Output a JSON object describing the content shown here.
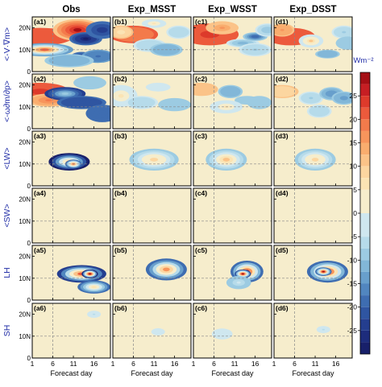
{
  "chart_data": {
    "type": "heatmap",
    "columns": [
      "Obs",
      "Exp_MSST",
      "Exp_WSST",
      "Exp_DSST"
    ],
    "rows": [
      "<-V·∇m>",
      "<-ω∂m/∂p>",
      "<LW>",
      "<SW>",
      "LH",
      "SH"
    ],
    "panel_labels": [
      [
        "(a1)",
        "(b1)",
        "(c1)",
        "(d1)"
      ],
      [
        "(a2)",
        "(b2)",
        "(c2)",
        "(d2)"
      ],
      [
        "(a3)",
        "(b3)",
        "(c3)",
        "(d3)"
      ],
      [
        "(a4)",
        "(b4)",
        "(c4)",
        "(d4)"
      ],
      [
        "(a5)",
        "(b5)",
        "(c5)",
        "(d5)"
      ],
      [
        "(a6)",
        "(b6)",
        "(c6)",
        "(d6)"
      ]
    ],
    "xlabel": "Forecast day",
    "x_ticks": [
      "1",
      "6",
      "11",
      "16"
    ],
    "xlim": [
      1,
      20
    ],
    "y_ticks": [
      "0",
      "10N",
      "20N"
    ],
    "ylim": [
      0,
      25
    ],
    "colorbar": {
      "unit": "Wm⁻²",
      "ticks": [
        25,
        20,
        15,
        10,
        5,
        0,
        -5,
        -10,
        -15,
        -20,
        -25
      ],
      "range": [
        -30,
        30
      ],
      "levels": [
        {
          "from": 27.5,
          "to": 30,
          "color": "#a50f15"
        },
        {
          "from": 25,
          "to": 27.5,
          "color": "#c61e23"
        },
        {
          "from": 22.5,
          "to": 25,
          "color": "#dd3a2b"
        },
        {
          "from": 20,
          "to": 22.5,
          "color": "#ec5a3c"
        },
        {
          "from": 17.5,
          "to": 20,
          "color": "#f37a4b"
        },
        {
          "from": 15,
          "to": 17.5,
          "color": "#f7955c"
        },
        {
          "from": 12.5,
          "to": 15,
          "color": "#f9ad6e"
        },
        {
          "from": 10,
          "to": 12.5,
          "color": "#fbc388"
        },
        {
          "from": 7.5,
          "to": 10,
          "color": "#fcd6a0"
        },
        {
          "from": 5,
          "to": 7.5,
          "color": "#fbe4b4"
        },
        {
          "from": 0,
          "to": 5,
          "color": "#f6edcc"
        },
        {
          "from": -5,
          "to": 0,
          "color": "#cfe7ef"
        },
        {
          "from": -7.5,
          "to": -5,
          "color": "#b6dbea"
        },
        {
          "from": -10,
          "to": -7.5,
          "color": "#9ccbe2"
        },
        {
          "from": -12.5,
          "to": -10,
          "color": "#82b7d8"
        },
        {
          "from": -15,
          "to": -12.5,
          "color": "#689fcc"
        },
        {
          "from": -17.5,
          "to": -15,
          "color": "#5186bf"
        },
        {
          "from": -20,
          "to": -17.5,
          "color": "#3e6db1"
        },
        {
          "from": -22.5,
          "to": -20,
          "color": "#2f55a1"
        },
        {
          "from": -25,
          "to": -22.5,
          "color": "#243e8f"
        },
        {
          "from": -27.5,
          "to": -25,
          "color": "#1d2c7c"
        },
        {
          "from": -30,
          "to": -27.5,
          "color": "#18206a"
        }
      ]
    },
    "background_value": 2,
    "reference_lines": {
      "x": 6,
      "y": 10
    },
    "fields": [
      [
        [
          [
            3,
            16,
            8,
            4,
            20,
            20
          ],
          [
            4,
            10,
            7,
            3,
            22,
            -15
          ],
          [
            12,
            19,
            6,
            5,
            28,
            12
          ],
          [
            13,
            6,
            3,
            3,
            -25,
            -18
          ],
          [
            14,
            15,
            4,
            3,
            -28,
            -20
          ],
          [
            18,
            19,
            4,
            4,
            -25,
            -18
          ],
          [
            17,
            7,
            4,
            3,
            -18,
            -15
          ],
          [
            10,
            5,
            6,
            3,
            -12,
            -10
          ]
        ],
        [
          [
            3,
            17,
            7,
            4,
            24,
            20
          ],
          [
            5,
            13,
            5,
            3,
            18,
            12
          ],
          [
            9,
            16,
            5,
            3,
            -8,
            -25
          ],
          [
            13,
            12,
            6,
            3,
            -22,
            -20
          ],
          [
            18,
            7,
            4,
            4,
            -20,
            -18
          ],
          [
            15,
            21,
            4,
            3,
            -10,
            -8
          ]
        ],
        [
          [
            10,
            11,
            5,
            4,
            12,
            -30
          ],
          [
            11,
            10,
            2,
            2,
            18,
            -20
          ]
        ],
        [],
        [
          [
            13,
            12,
            6,
            4,
            20,
            -25
          ],
          [
            15,
            12,
            2,
            2,
            30,
            -26
          ],
          [
            16,
            6,
            4,
            3,
            6,
            -20
          ]
        ],
        [
          [
            16,
            20,
            2,
            2,
            -6,
            0
          ]
        ]
      ],
      [
        [
          [
            6,
            17,
            6,
            4,
            18,
            20
          ],
          [
            3,
            18,
            3,
            3,
            6,
            10
          ],
          [
            10,
            12,
            4,
            3,
            -7,
            -5
          ],
          [
            14,
            10,
            4,
            3,
            -12,
            -10
          ],
          [
            17,
            18,
            3,
            3,
            -6,
            -5
          ],
          [
            11,
            22,
            3,
            2,
            5,
            -5
          ]
        ],
        [
          [
            3,
            15,
            4,
            5,
            6,
            -5
          ],
          [
            8,
            12,
            4,
            3,
            -6,
            -5
          ],
          [
            16,
            11,
            4,
            3,
            -10,
            -10
          ],
          [
            12,
            19,
            3,
            2,
            -5,
            -5
          ]
        ],
        [
          [
            11,
            12,
            6,
            5,
            8,
            -10
          ]
        ],
        [],
        [
          [
            14,
            14,
            5,
            5,
            16,
            -20
          ]
        ],
        [
          [
            12,
            12,
            2,
            2,
            -5,
            0
          ]
        ]
      ],
      [
        [
          [
            5,
            17,
            7,
            5,
            24,
            20
          ],
          [
            8,
            20,
            4,
            3,
            15,
            10
          ],
          [
            13,
            13,
            4,
            2,
            -12,
            -5
          ],
          [
            16,
            16,
            3,
            2,
            -20,
            -10
          ],
          [
            16,
            10,
            4,
            3,
            -8,
            -5
          ],
          [
            19,
            19,
            3,
            3,
            -10,
            -5
          ]
        ],
        [
          [
            3,
            18,
            4,
            3,
            10,
            10
          ],
          [
            10,
            17,
            3,
            3,
            -12,
            -10
          ],
          [
            14,
            13,
            3,
            2,
            -10,
            -8
          ],
          [
            17,
            12,
            3,
            3,
            -10,
            -8
          ],
          [
            9,
            10,
            4,
            3,
            6,
            -5
          ]
        ],
        [
          [
            9,
            12,
            5,
            5,
            10,
            -10
          ]
        ],
        [],
        [
          [
            14,
            13,
            4,
            5,
            25,
            -20
          ],
          [
            13,
            12,
            2,
            2,
            28,
            -22
          ],
          [
            12,
            8,
            3,
            3,
            -5,
            -10
          ]
        ],
        [
          [
            8,
            11,
            3,
            3,
            -5,
            0
          ]
        ]
      ],
      [
        [
          [
            5,
            16,
            6,
            4,
            22,
            20
          ],
          [
            3,
            19,
            3,
            3,
            15,
            12
          ],
          [
            10,
            14,
            3,
            3,
            10,
            -5
          ],
          [
            14,
            8,
            3,
            2,
            -12,
            -10
          ],
          [
            18,
            18,
            3,
            3,
            -8,
            -5
          ],
          [
            19,
            13,
            3,
            3,
            -10,
            -8
          ]
        ],
        [
          [
            3,
            17,
            4,
            3,
            8,
            10
          ],
          [
            10,
            14,
            3,
            3,
            -8,
            -5
          ],
          [
            15,
            16,
            3,
            3,
            -15,
            -10
          ],
          [
            18,
            14,
            3,
            3,
            -14,
            -10
          ],
          [
            12,
            8,
            3,
            3,
            -6,
            -5
          ]
        ],
        [
          [
            11,
            12,
            5,
            5,
            8,
            -10
          ]
        ],
        [],
        [
          [
            14,
            13,
            5,
            5,
            24,
            -20
          ],
          [
            13,
            13,
            2,
            2,
            28,
            -20
          ]
        ],
        [
          [
            13,
            13,
            2,
            2,
            -6,
            0
          ]
        ]
      ]
    ]
  }
}
